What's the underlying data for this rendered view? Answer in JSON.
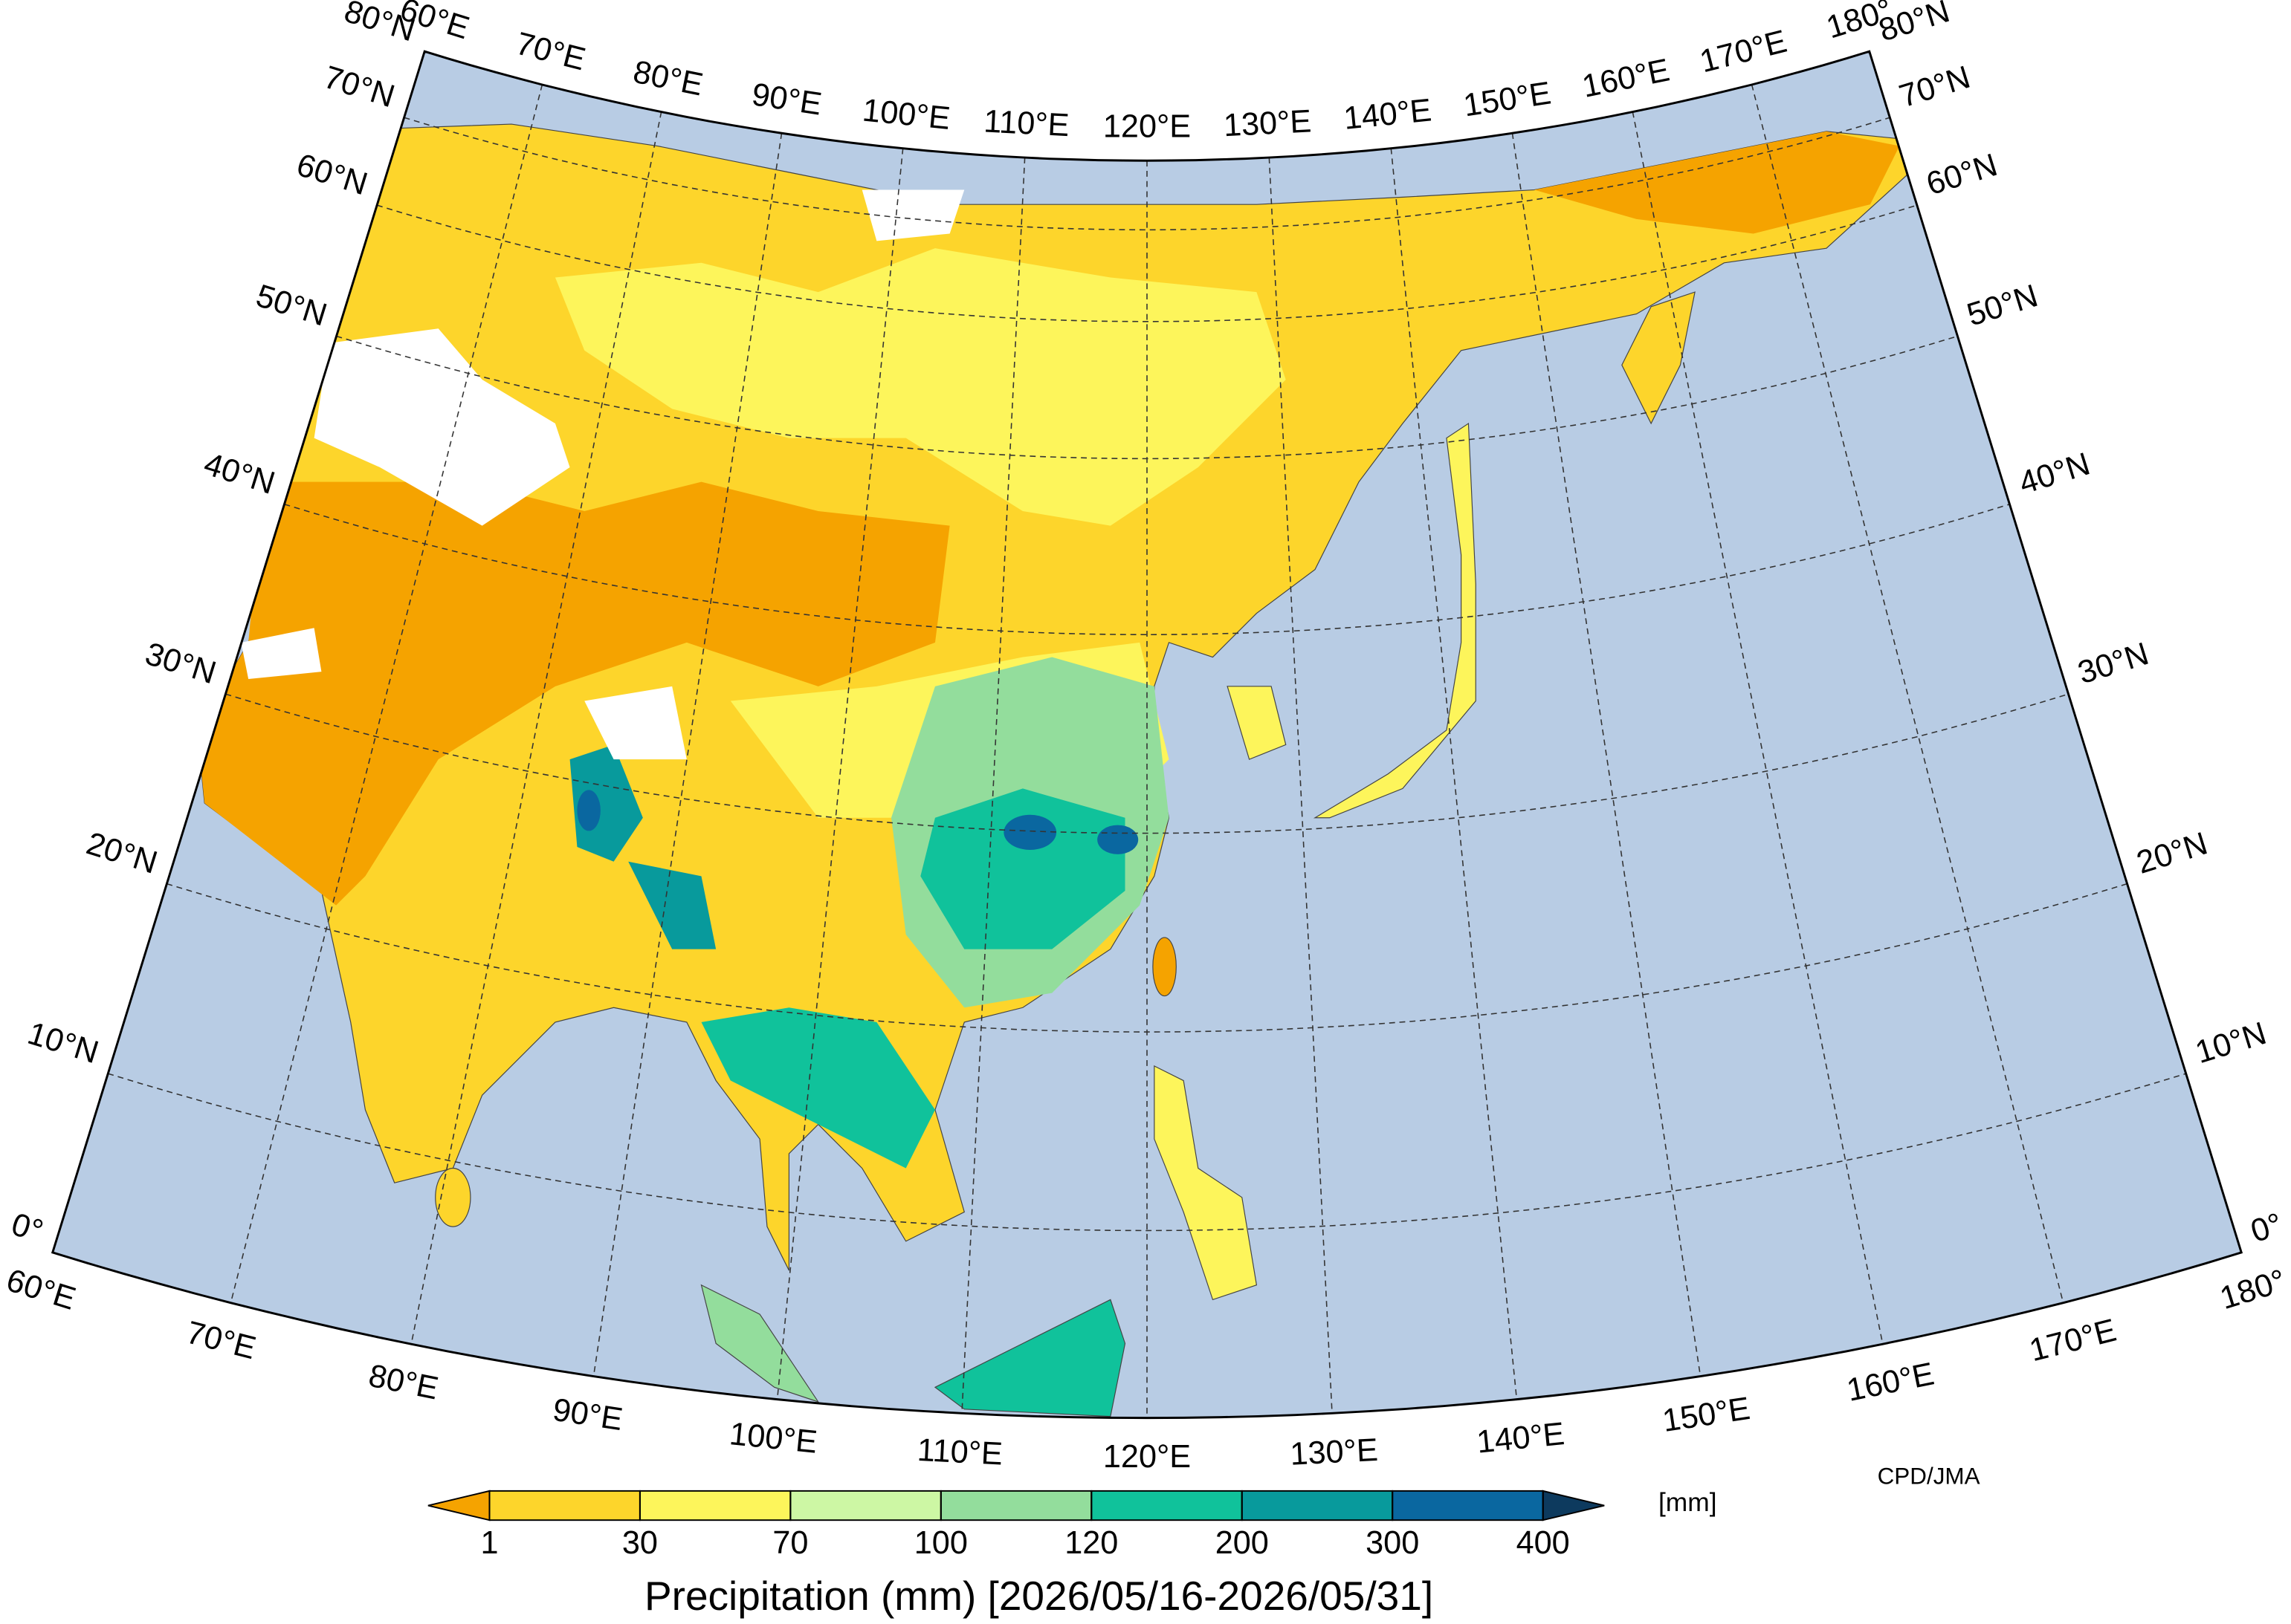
{
  "map": {
    "lon_labels": [
      "60°E",
      "70°E",
      "80°E",
      "90°E",
      "100°E",
      "110°E",
      "120°E",
      "130°E",
      "140°E",
      "150°E",
      "160°E",
      "170°E",
      "180°"
    ],
    "lat_labels": [
      "0°",
      "10°N",
      "20°N",
      "30°N",
      "40°N",
      "50°N",
      "60°N",
      "70°N",
      "80°N"
    ]
  },
  "colorbar": {
    "levels": [
      1,
      30,
      70,
      100,
      120,
      200,
      300,
      400
    ],
    "colors": [
      "#f5a300",
      "#fdd52b",
      "#fdf55b",
      "#cdf7a4",
      "#93dd9c",
      "#10c29b",
      "#089a9c",
      "#0a67a0",
      "#0d3a5e"
    ],
    "unit": "[mm]",
    "title": "Precipitation (mm) [2026/05/16-2026/05/31]"
  },
  "credit": "CPD/JMA"
}
